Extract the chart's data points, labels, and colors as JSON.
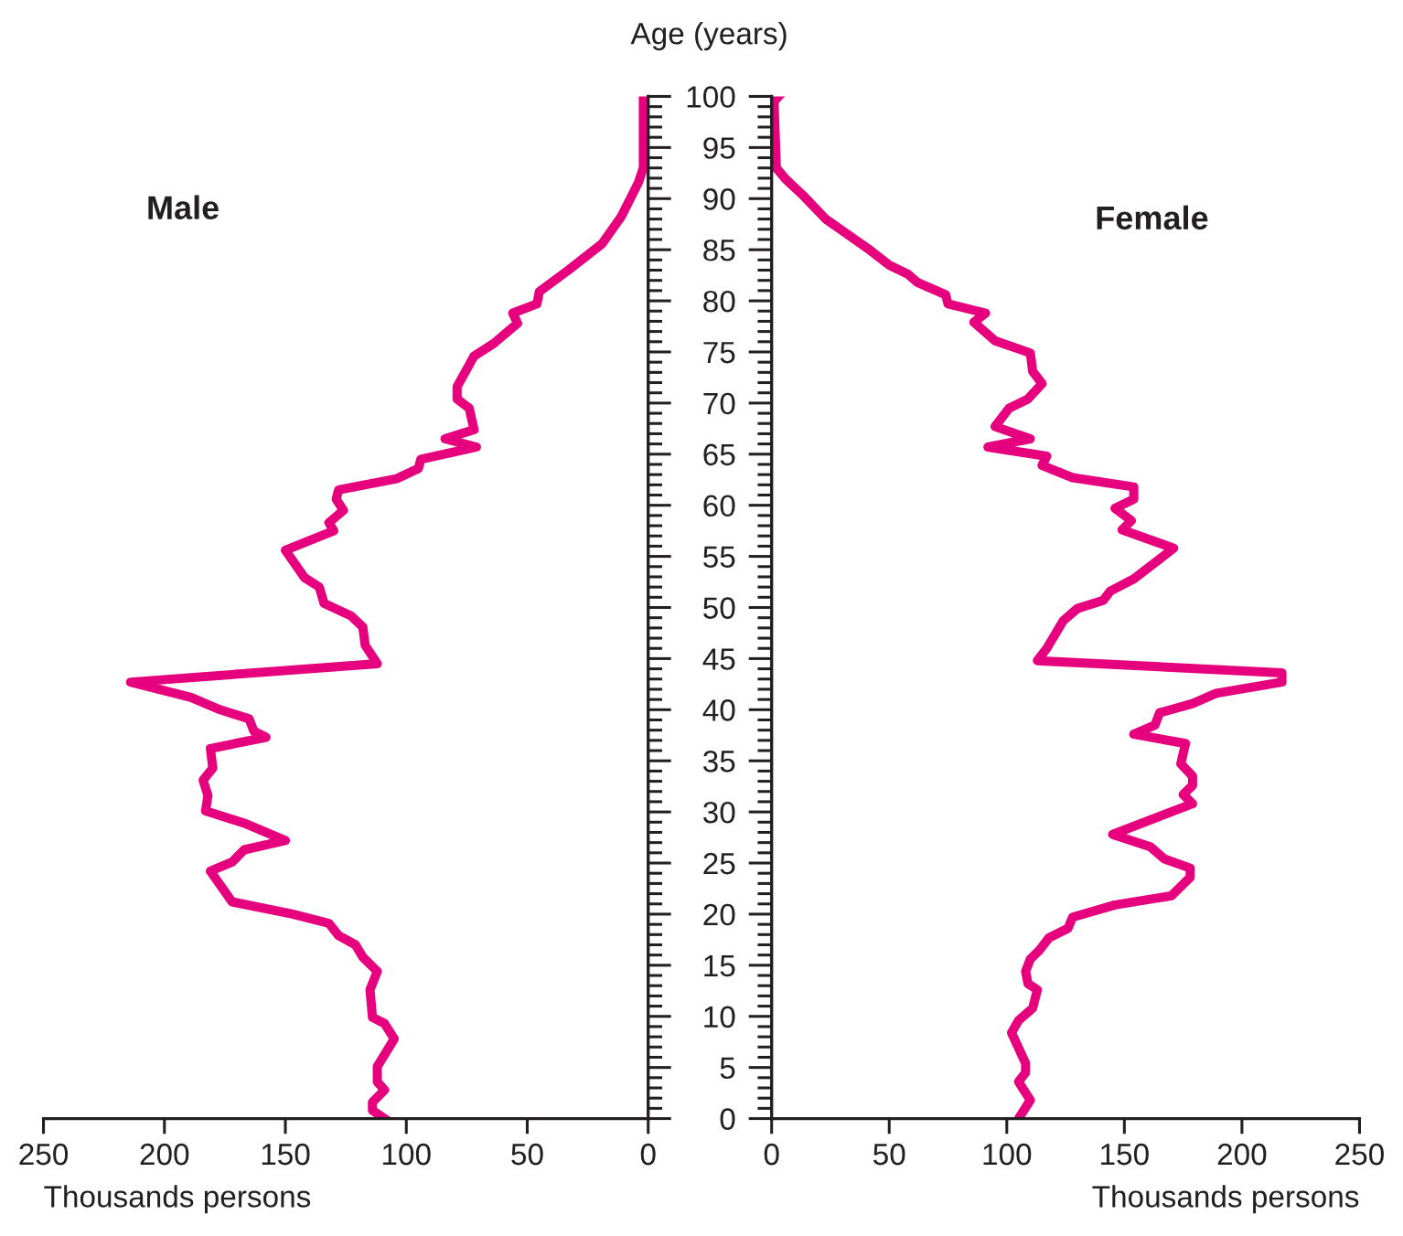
{
  "chart_data": [
    {
      "type": "line",
      "xlabel": "Thousands persons",
      "xlim": [
        250,
        0
      ],
      "xticks": [
        250,
        200,
        150,
        100,
        50,
        0
      ],
      "ylim": [
        0,
        100
      ],
      "tick_labels": "x",
      "legend": false,
      "grid": false,
      "yticks": [
        0,
        {
          "value": 1,
          "label": null
        },
        {
          "value": 2,
          "label": null
        },
        {
          "value": 3,
          "label": null
        },
        {
          "value": 4,
          "label": null
        },
        5,
        {
          "value": 6,
          "label": null
        },
        {
          "value": 7,
          "label": null
        },
        {
          "value": 8,
          "label": null
        },
        {
          "value": 9,
          "label": null
        },
        10,
        {
          "value": 11,
          "label": null
        },
        {
          "value": 12,
          "label": null
        },
        {
          "value": 13,
          "label": null
        },
        {
          "value": 14,
          "label": null
        },
        15,
        {
          "value": 16,
          "label": null
        },
        {
          "value": 17,
          "label": null
        },
        {
          "value": 18,
          "label": null
        },
        {
          "value": 19,
          "label": null
        },
        20,
        {
          "value": 21,
          "label": null
        },
        {
          "value": 22,
          "label": null
        },
        {
          "value": 23,
          "label": null
        },
        {
          "value": 24,
          "label": null
        },
        25,
        {
          "value": 26,
          "label": null
        },
        {
          "value": 27,
          "label": null
        },
        {
          "value": 28,
          "label": null
        },
        {
          "value": 29,
          "label": null
        },
        30,
        {
          "value": 31,
          "label": null
        },
        {
          "value": 32,
          "label": null
        },
        {
          "value": 33,
          "label": null
        },
        {
          "value": 34,
          "label": null
        },
        35,
        {
          "value": 36,
          "label": null
        },
        {
          "value": 37,
          "label": null
        },
        {
          "value": 38,
          "label": null
        },
        {
          "value": 39,
          "label": null
        },
        40,
        {
          "value": 41,
          "label": null
        },
        {
          "value": 42,
          "label": null
        },
        {
          "value": 43,
          "label": null
        },
        {
          "value": 44,
          "label": null
        },
        45,
        {
          "value": 46,
          "label": null
        },
        {
          "value": 47,
          "label": null
        },
        {
          "value": 48,
          "label": null
        },
        {
          "value": 49,
          "label": null
        },
        50,
        {
          "value": 51,
          "label": null
        },
        {
          "value": 52,
          "label": null
        },
        {
          "value": 53,
          "label": null
        },
        {
          "value": 54,
          "label": null
        },
        55,
        {
          "value": 56,
          "label": null
        },
        {
          "value": 57,
          "label": null
        },
        {
          "value": 58,
          "label": null
        },
        {
          "value": 59,
          "label": null
        },
        60,
        {
          "value": 61,
          "label": null
        },
        {
          "value": 62,
          "label": null
        },
        {
          "value": 63,
          "label": null
        },
        {
          "value": 64,
          "label": null
        },
        65,
        {
          "value": 66,
          "label": null
        },
        {
          "value": 67,
          "label": null
        },
        {
          "value": 68,
          "label": null
        },
        {
          "value": 69,
          "label": null
        },
        70,
        {
          "value": 71,
          "label": null
        },
        {
          "value": 72,
          "label": null
        },
        {
          "value": 73,
          "label": null
        },
        {
          "value": 74,
          "label": null
        },
        75,
        {
          "value": 76,
          "label": null
        },
        {
          "value": 77,
          "label": null
        },
        {
          "value": 78,
          "label": null
        },
        {
          "value": 79,
          "label": null
        },
        80,
        {
          "value": 81,
          "label": null
        },
        {
          "value": 82,
          "label": null
        },
        {
          "value": 83,
          "label": null
        },
        {
          "value": 84,
          "label": null
        },
        85,
        {
          "value": 86,
          "label": null
        },
        {
          "value": 87,
          "label": null
        },
        {
          "value": 88,
          "label": null
        },
        {
          "value": 89,
          "label": null
        },
        90,
        {
          "value": 91,
          "label": null
        },
        {
          "value": 92,
          "label": null
        },
        {
          "value": 93,
          "label": null
        },
        {
          "value": 94,
          "label": null
        },
        95,
        {
          "value": 96,
          "label": null
        },
        {
          "value": 97,
          "label": null
        },
        {
          "value": 98,
          "label": null
        },
        {
          "value": 99,
          "label": null
        },
        100
      ],
      "series": [
        {
          "name": "Male",
          "color": "#e6007e",
          "x": [
            2,
            2,
            4,
            11,
            19,
            33,
            45,
            46,
            56,
            54,
            64,
            72,
            79,
            79,
            74,
            72,
            84,
            71,
            94,
            95,
            104,
            128,
            129,
            126,
            132,
            130,
            150,
            142,
            136,
            134,
            123,
            118,
            117,
            112,
            214,
            189,
            177,
            165,
            163,
            158,
            181,
            180,
            184,
            182,
            183,
            167,
            150,
            167,
            172,
            181,
            172,
            147,
            132,
            128,
            121,
            118,
            112,
            115,
            114,
            109,
            105,
            112,
            112,
            109,
            114,
            114,
            109
          ],
          "values": [
            100,
            93,
            91.6,
            88.3,
            85.6,
            83,
            80.9,
            79.7,
            78.8,
            77.8,
            75.8,
            74.6,
            71.6,
            70.4,
            69.5,
            67.4,
            66.5,
            65.7,
            64.5,
            63.6,
            62.6,
            61.5,
            60.6,
            59.5,
            58.3,
            57.5,
            55.6,
            52.9,
            52,
            50.4,
            49.2,
            48.1,
            46.3,
            44.5,
            42.7,
            41.2,
            40,
            39.1,
            37.9,
            37.3,
            36.2,
            34.3,
            33.1,
            31.6,
            30.1,
            28.9,
            27.2,
            26.3,
            25.1,
            24.2,
            21.2,
            20,
            19.1,
            17.9,
            17,
            15.8,
            14.4,
            12.6,
            9.9,
            9.3,
            7.8,
            5.1,
            3.6,
            2.8,
            1.6,
            0.8,
            0
          ]
        }
      ]
    },
    {
      "type": "line",
      "xlabel": "Thousands persons",
      "ylabel": "Age (years)",
      "xlim": [
        0,
        250
      ],
      "xticks": [
        0,
        50,
        100,
        150,
        200,
        250
      ],
      "ylim": [
        0,
        100
      ],
      "legend": false,
      "grid": false,
      "yticks": [
        0,
        {
          "value": 1,
          "label": null
        },
        {
          "value": 2,
          "label": null
        },
        {
          "value": 3,
          "label": null
        },
        {
          "value": 4,
          "label": null
        },
        5,
        {
          "value": 6,
          "label": null
        },
        {
          "value": 7,
          "label": null
        },
        {
          "value": 8,
          "label": null
        },
        {
          "value": 9,
          "label": null
        },
        10,
        {
          "value": 11,
          "label": null
        },
        {
          "value": 12,
          "label": null
        },
        {
          "value": 13,
          "label": null
        },
        {
          "value": 14,
          "label": null
        },
        15,
        {
          "value": 16,
          "label": null
        },
        {
          "value": 17,
          "label": null
        },
        {
          "value": 18,
          "label": null
        },
        {
          "value": 19,
          "label": null
        },
        20,
        {
          "value": 21,
          "label": null
        },
        {
          "value": 22,
          "label": null
        },
        {
          "value": 23,
          "label": null
        },
        {
          "value": 24,
          "label": null
        },
        25,
        {
          "value": 26,
          "label": null
        },
        {
          "value": 27,
          "label": null
        },
        {
          "value": 28,
          "label": null
        },
        {
          "value": 29,
          "label": null
        },
        30,
        {
          "value": 31,
          "label": null
        },
        {
          "value": 32,
          "label": null
        },
        {
          "value": 33,
          "label": null
        },
        {
          "value": 34,
          "label": null
        },
        35,
        {
          "value": 36,
          "label": null
        },
        {
          "value": 37,
          "label": null
        },
        {
          "value": 38,
          "label": null
        },
        {
          "value": 39,
          "label": null
        },
        40,
        {
          "value": 41,
          "label": null
        },
        {
          "value": 42,
          "label": null
        },
        {
          "value": 43,
          "label": null
        },
        {
          "value": 44,
          "label": null
        },
        45,
        {
          "value": 46,
          "label": null
        },
        {
          "value": 47,
          "label": null
        },
        {
          "value": 48,
          "label": null
        },
        {
          "value": 49,
          "label": null
        },
        50,
        {
          "value": 51,
          "label": null
        },
        {
          "value": 52,
          "label": null
        },
        {
          "value": 53,
          "label": null
        },
        {
          "value": 54,
          "label": null
        },
        55,
        {
          "value": 56,
          "label": null
        },
        {
          "value": 57,
          "label": null
        },
        {
          "value": 58,
          "label": null
        },
        {
          "value": 59,
          "label": null
        },
        60,
        {
          "value": 61,
          "label": null
        },
        {
          "value": 62,
          "label": null
        },
        {
          "value": 63,
          "label": null
        },
        {
          "value": 64,
          "label": null
        },
        65,
        {
          "value": 66,
          "label": null
        },
        {
          "value": 67,
          "label": null
        },
        {
          "value": 68,
          "label": null
        },
        {
          "value": 69,
          "label": null
        },
        70,
        {
          "value": 71,
          "label": null
        },
        {
          "value": 72,
          "label": null
        },
        {
          "value": 73,
          "label": null
        },
        {
          "value": 74,
          "label": null
        },
        75,
        {
          "value": 76,
          "label": null
        },
        {
          "value": 77,
          "label": null
        },
        {
          "value": 78,
          "label": null
        },
        {
          "value": 79,
          "label": null
        },
        80,
        {
          "value": 81,
          "label": null
        },
        {
          "value": 82,
          "label": null
        },
        {
          "value": 83,
          "label": null
        },
        {
          "value": 84,
          "label": null
        },
        85,
        {
          "value": 86,
          "label": null
        },
        {
          "value": 87,
          "label": null
        },
        {
          "value": 88,
          "label": null
        },
        {
          "value": 89,
          "label": null
        },
        90,
        {
          "value": 91,
          "label": null
        },
        {
          "value": 92,
          "label": null
        },
        {
          "value": 93,
          "label": null
        },
        {
          "value": 94,
          "label": null
        },
        95,
        {
          "value": 96,
          "label": null
        },
        {
          "value": 97,
          "label": null
        },
        {
          "value": 98,
          "label": null
        },
        {
          "value": 99,
          "label": null
        },
        100
      ],
      "series": [
        {
          "name": "Female",
          "color": "#e6007e",
          "x": [
            3,
            1,
            2,
            6,
            13,
            23,
            41,
            50,
            58,
            62,
            74,
            75,
            91,
            86,
            95,
            110,
            111,
            115,
            109,
            101,
            95,
            110,
            92,
            117,
            115,
            128,
            154,
            154,
            146,
            153,
            149,
            171,
            154,
            144,
            141,
            130,
            124,
            117,
            113,
            217,
            217,
            189,
            179,
            165,
            163,
            154,
            176,
            174,
            179,
            179,
            175,
            179,
            145,
            161,
            167,
            178,
            178,
            170,
            146,
            128,
            126,
            118,
            114,
            110,
            108,
            109,
            113,
            111,
            105,
            102,
            105,
            108,
            108,
            105,
            110,
            105
          ],
          "values": [
            100,
            99.5,
            93,
            91.9,
            90.4,
            88,
            85.1,
            83.5,
            82.6,
            81.8,
            80.6,
            79.7,
            78.8,
            77.9,
            76.1,
            74.9,
            73.1,
            71.9,
            70.4,
            69.5,
            67.7,
            66.5,
            65.7,
            64.8,
            63.9,
            62.7,
            61.8,
            60.6,
            59.7,
            58.5,
            57.6,
            55.8,
            52.8,
            51.6,
            50.7,
            49.9,
            48.7,
            46,
            44.8,
            43.6,
            42.7,
            41.6,
            40.6,
            39.7,
            38.5,
            37.6,
            36.7,
            34.7,
            33.5,
            32.6,
            31.7,
            30.8,
            27.8,
            26.6,
            25.4,
            24.5,
            23.6,
            21.8,
            20.9,
            19.7,
            18.6,
            17.7,
            16.5,
            15.6,
            14.4,
            13.2,
            12.6,
            10.8,
            9.6,
            8.4,
            6.9,
            5.4,
            4.5,
            3.6,
            1.8,
            0
          ]
        }
      ]
    }
  ]
}
